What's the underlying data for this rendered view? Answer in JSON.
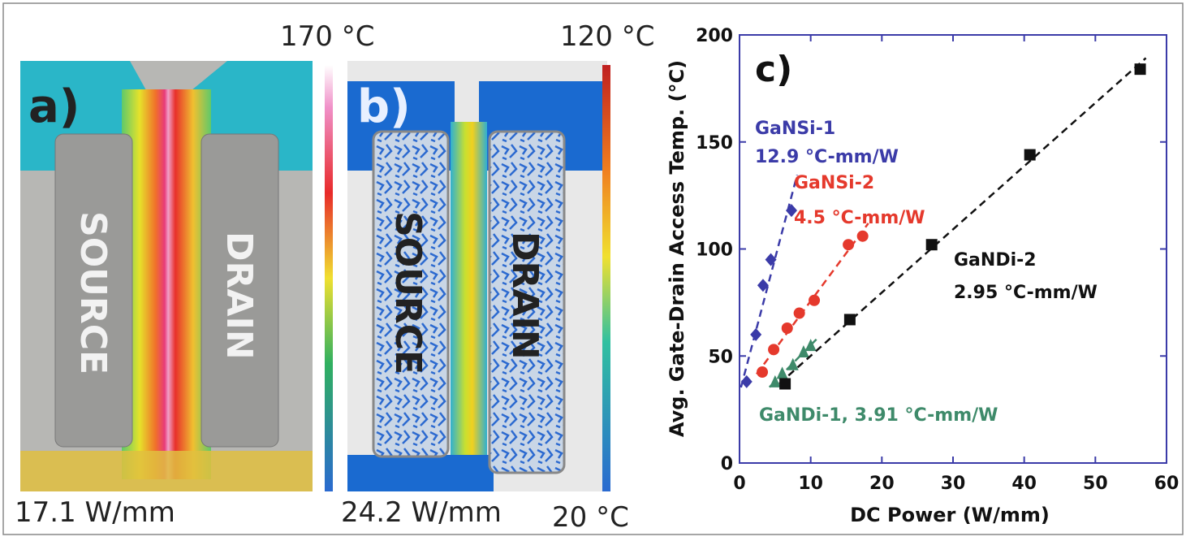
{
  "panel_a": {
    "label": "a)",
    "scale_max": "170 °C",
    "power": "17.1 W/mm",
    "source": "SOURCE",
    "drain": "DRAIN"
  },
  "panel_b": {
    "label": "b)",
    "scale_max": "120 °C",
    "scale_min": "20 °C",
    "power": "24.2 W/mm",
    "source": "SOURCE",
    "drain": "DRAIN"
  },
  "chart_data": {
    "type": "scatter",
    "panel_label": "c)",
    "xlabel": "DC Power (W/mm)",
    "ylabel": "Avg. Gate-Drain Access Temp. (°C)",
    "xlim": [
      0,
      60
    ],
    "ylim": [
      0,
      200
    ],
    "xticks": [
      0,
      10,
      20,
      30,
      40,
      50,
      60
    ],
    "yticks": [
      0,
      50,
      100,
      150,
      200
    ],
    "series": [
      {
        "name": "GaNSi-1",
        "annotation": "12.9 °C-mm/W",
        "color": "#3b3ba8",
        "marker": "diamond",
        "x": [
          1.0,
          2.3,
          3.3,
          4.4,
          7.3
        ],
        "values": [
          38,
          60,
          83,
          95,
          118
        ]
      },
      {
        "name": "GaNSi-2",
        "annotation": "4.5 °C-mm/W",
        "color": "#e5392c",
        "marker": "circle",
        "x": [
          3.2,
          4.8,
          6.7,
          8.4,
          10.5,
          15.3,
          17.3
        ],
        "values": [
          42.5,
          53,
          63,
          70,
          76,
          102,
          106
        ]
      },
      {
        "name": "GaNDi-1",
        "annotation": ", 3.91 °C-mm/W",
        "color": "#3e8a6a",
        "marker": "triangle",
        "x": [
          5.0,
          6.0,
          7.5,
          9.0,
          10.0
        ],
        "values": [
          38,
          42,
          46,
          52,
          55
        ]
      },
      {
        "name": "GaNDi-2",
        "annotation": "2.95 °C-mm/W",
        "color": "#111111",
        "marker": "square",
        "x": [
          6.4,
          15.5,
          27.0,
          40.8,
          56.3
        ],
        "values": [
          37,
          67,
          102,
          144,
          184
        ]
      }
    ]
  }
}
